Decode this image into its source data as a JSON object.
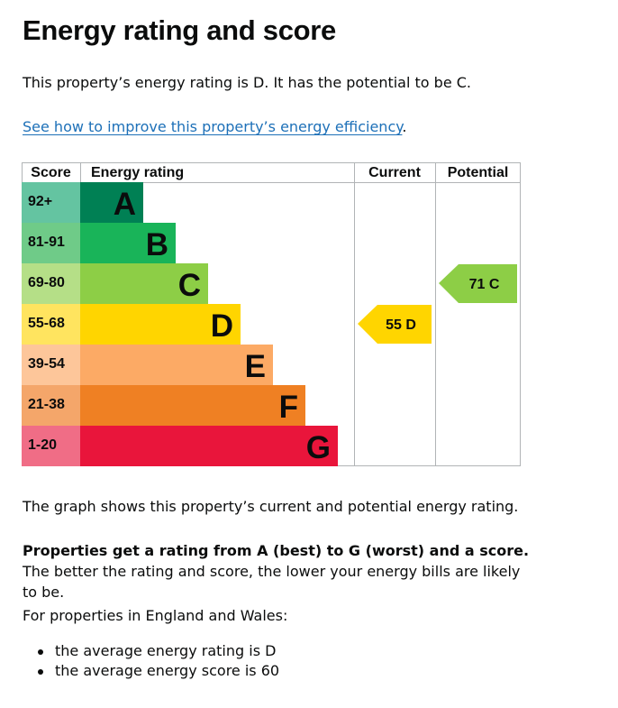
{
  "heading": "Energy rating and score",
  "intro": "This property’s energy rating is D. It has the potential to be C.",
  "improve_link": "See how to improve this property’s energy efficiency",
  "improve_link_suffix": ".",
  "chart_data": {
    "type": "table",
    "columns": [
      "Score",
      "Energy rating",
      "Current",
      "Potential"
    ],
    "bands": [
      {
        "band": "A",
        "score_range": "92+",
        "min": 92,
        "max": 100,
        "color": "#008054",
        "score_color": "#64c4a1"
      },
      {
        "band": "B",
        "score_range": "81-91",
        "min": 81,
        "max": 91,
        "color": "#19b459",
        "score_color": "#6fcb88"
      },
      {
        "band": "C",
        "score_range": "69-80",
        "min": 69,
        "max": 80,
        "color": "#8dce46",
        "score_color": "#b5df87"
      },
      {
        "band": "D",
        "score_range": "55-68",
        "min": 55,
        "max": 68,
        "color": "#ffd500",
        "score_color": "#ffe45f"
      },
      {
        "band": "E",
        "score_range": "39-54",
        "min": 39,
        "max": 54,
        "color": "#fcaa65",
        "score_color": "#fdc69a"
      },
      {
        "band": "F",
        "score_range": "21-38",
        "min": 21,
        "max": 38,
        "color": "#ef8023",
        "score_color": "#f4a66a"
      },
      {
        "band": "G",
        "score_range": "1-20",
        "min": 1,
        "max": 20,
        "color": "#e9153b",
        "score_color": "#f06d86"
      }
    ],
    "current": {
      "score": 55,
      "band": "D",
      "color": "#ffd500"
    },
    "potential": {
      "score": 71,
      "band": "C",
      "color": "#8dce46"
    }
  },
  "graph_caption": "The graph shows this property’s current and potential energy rating.",
  "rating_bold": "Properties get a rating from A (best) to G (worst) and a score.",
  "rating_rest": " The better the rating and score, the lower your energy bills are likely to be.",
  "average_intro": "For properties in England and Wales:",
  "average_items": [
    "the average energy rating is D",
    "the average energy score is 60"
  ]
}
